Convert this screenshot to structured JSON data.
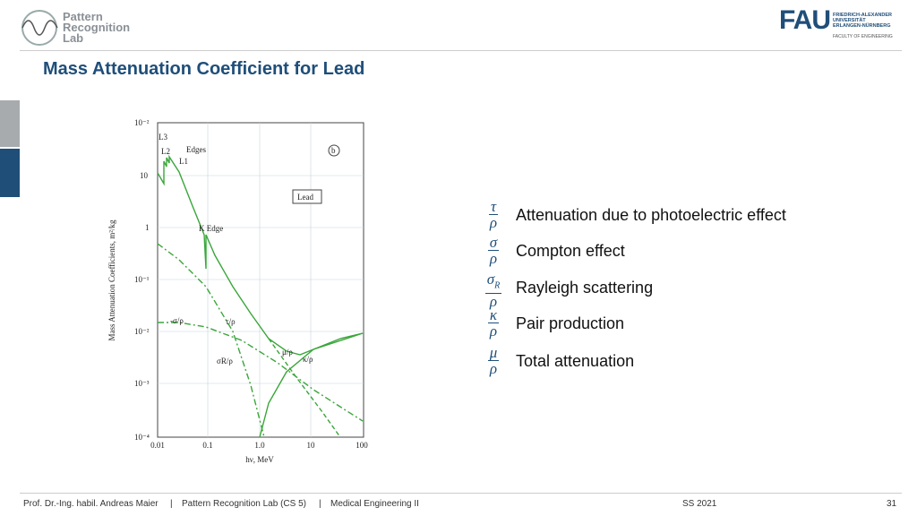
{
  "header": {
    "lab_name": [
      "Pattern",
      "Recognition",
      "Lab"
    ],
    "university": "FAU",
    "university_lines": [
      "FRIEDRICH-ALEXANDER",
      "UNIVERSITÄT",
      "ERLANGEN-NÜRNBERG"
    ],
    "faculty": "FACULTY OF ENGINEERING"
  },
  "title": "Mass Attenuation Coefficient for Lead",
  "figure": {
    "y_ticks": [
      "10⁻²",
      "10",
      "1",
      "10⁻¹",
      "10⁻²",
      "10⁻³",
      "10⁻⁴"
    ],
    "x_ticks": [
      "0.01",
      "0.1",
      "1.0",
      "10",
      "100"
    ],
    "y_label": "Mass Attenuation Coefficients, m²/kg",
    "x_label": "hν, MeV",
    "annotations": {
      "l3": "L3",
      "l2": "L2",
      "l1": "L1",
      "edges": "Edges",
      "panel": "b",
      "material": "Lead",
      "k_edge": "K Edge",
      "tau": "τ/ρ",
      "sigma": "-σ/ρ",
      "sigma_r": "σR/ρ",
      "mu": "μ/ρ",
      "kappa": "κ/ρ"
    }
  },
  "legend": [
    {
      "num": "τ",
      "den": "ρ",
      "text": "Attenuation due to photoelectric effect"
    },
    {
      "num": "σ",
      "den": "ρ",
      "text": "Compton effect"
    },
    {
      "num": "σ",
      "sub": "R",
      "den": "ρ",
      "text": "Rayleigh scattering"
    },
    {
      "num": "κ",
      "den": "ρ",
      "text": "Pair production"
    },
    {
      "num": "μ",
      "den": "ρ",
      "text": "Total attenuation"
    }
  ],
  "footer": {
    "author": "Prof. Dr.-Ing. habil. Andreas Maier",
    "lab": "Pattern Recognition Lab (CS 5)",
    "course": "Medical Engineering II",
    "term": "SS 2021",
    "page": "31"
  }
}
